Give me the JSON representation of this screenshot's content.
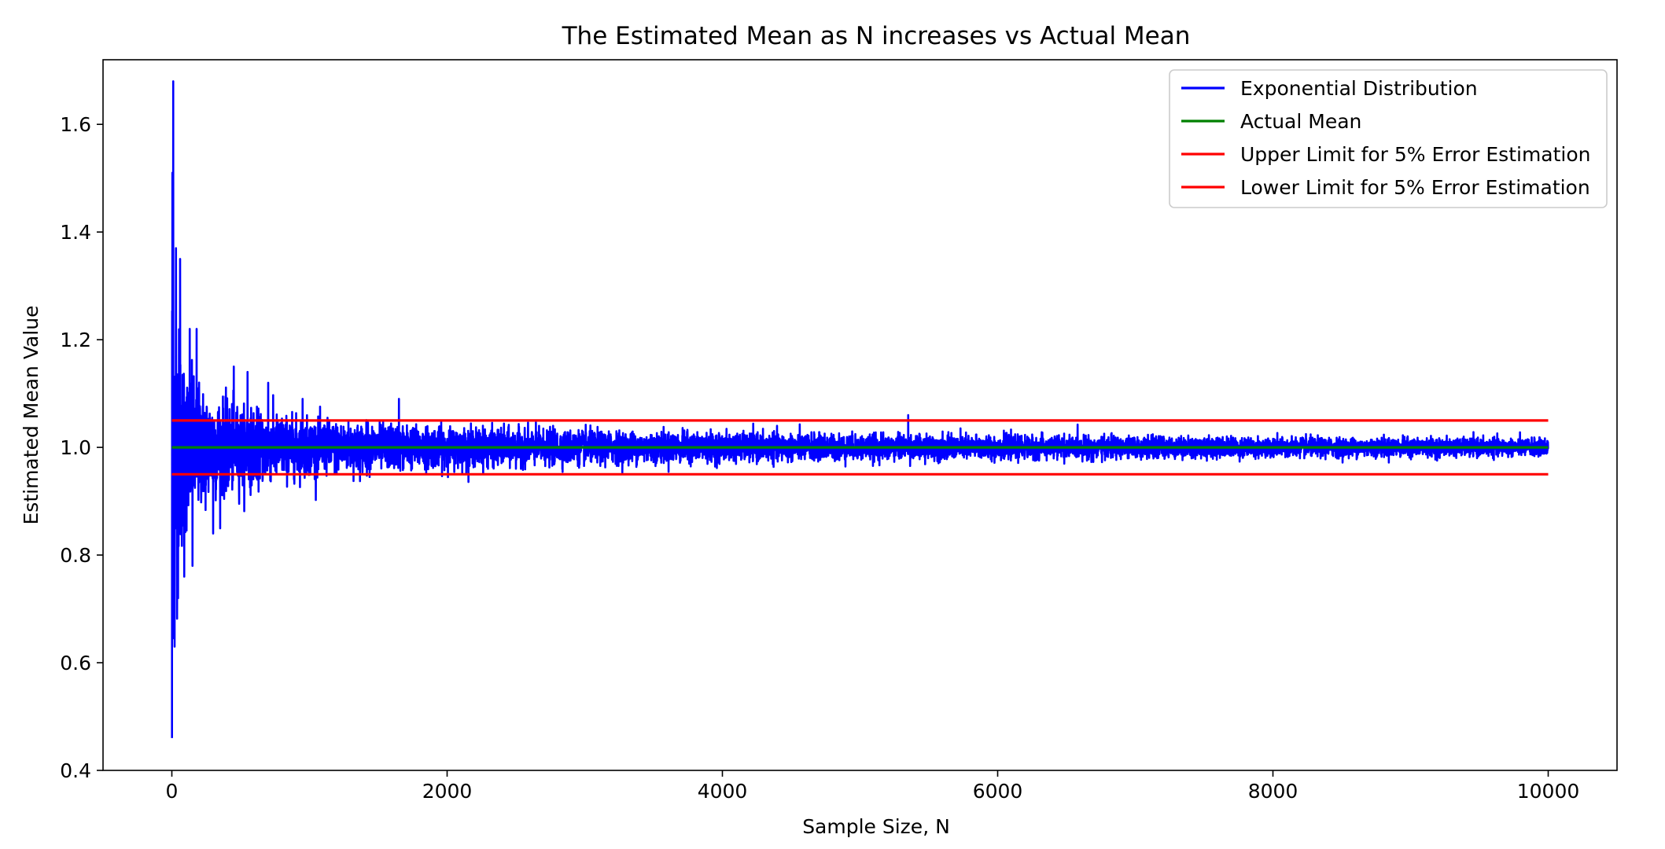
{
  "chart_data": {
    "type": "line",
    "title": "The Estimated Mean as N increases vs Actual Mean",
    "xlabel": "Sample Size, N",
    "ylabel": "Estimated Mean Value",
    "xlim": [
      -500,
      10500
    ],
    "ylim": [
      0.4,
      1.72
    ],
    "xticks": [
      0,
      2000,
      4000,
      6000,
      8000,
      10000
    ],
    "xtick_labels": [
      "0",
      "2000",
      "4000",
      "6000",
      "8000",
      "10000"
    ],
    "yticks": [
      0.4,
      0.6,
      0.8,
      1.0,
      1.2,
      1.4,
      1.6
    ],
    "ytick_labels": [
      "0.4",
      "0.6",
      "0.8",
      "1.0",
      "1.2",
      "1.4",
      "1.6"
    ],
    "grid": false,
    "legend_position": "top-right",
    "series": [
      {
        "name": "Exponential Distribution",
        "color": "#0000ff",
        "kind": "noisy_sample_mean",
        "x_range": [
          1,
          10000
        ],
        "center": 1.0,
        "noise_envelope": {
          "x": [
            1,
            10,
            50,
            100,
            200,
            500,
            1000,
            2000,
            4000,
            6000,
            8000,
            10000
          ],
          "half_width": [
            0.55,
            0.32,
            0.2,
            0.14,
            0.1,
            0.065,
            0.045,
            0.032,
            0.023,
            0.019,
            0.016,
            0.014
          ]
        },
        "extremes": [
          {
            "x": 1,
            "y": 0.46
          },
          {
            "x": 4,
            "y": 1.51
          },
          {
            "x": 10,
            "y": 1.68
          },
          {
            "x": 20,
            "y": 0.63
          },
          {
            "x": 30,
            "y": 1.37
          },
          {
            "x": 45,
            "y": 0.72
          },
          {
            "x": 60,
            "y": 1.35
          },
          {
            "x": 90,
            "y": 0.76
          },
          {
            "x": 130,
            "y": 1.22
          },
          {
            "x": 180,
            "y": 1.22
          },
          {
            "x": 150,
            "y": 0.78
          },
          {
            "x": 300,
            "y": 0.84
          },
          {
            "x": 450,
            "y": 1.15
          },
          {
            "x": 550,
            "y": 1.14
          },
          {
            "x": 700,
            "y": 1.12
          },
          {
            "x": 950,
            "y": 1.09
          },
          {
            "x": 1650,
            "y": 1.09
          },
          {
            "x": 5350,
            "y": 1.06
          }
        ]
      },
      {
        "name": "Actual Mean",
        "color": "#008000",
        "x": [
          0,
          10000
        ],
        "y": [
          1.0,
          1.0
        ]
      },
      {
        "name": "Upper Limit for 5% Error Estimation",
        "color": "#ff0000",
        "x": [
          0,
          10000
        ],
        "y": [
          1.05,
          1.05
        ]
      },
      {
        "name": "Lower Limit for 5% Error Estimation",
        "color": "#ff0000",
        "x": [
          0,
          10000
        ],
        "y": [
          0.95,
          0.95
        ]
      }
    ]
  }
}
